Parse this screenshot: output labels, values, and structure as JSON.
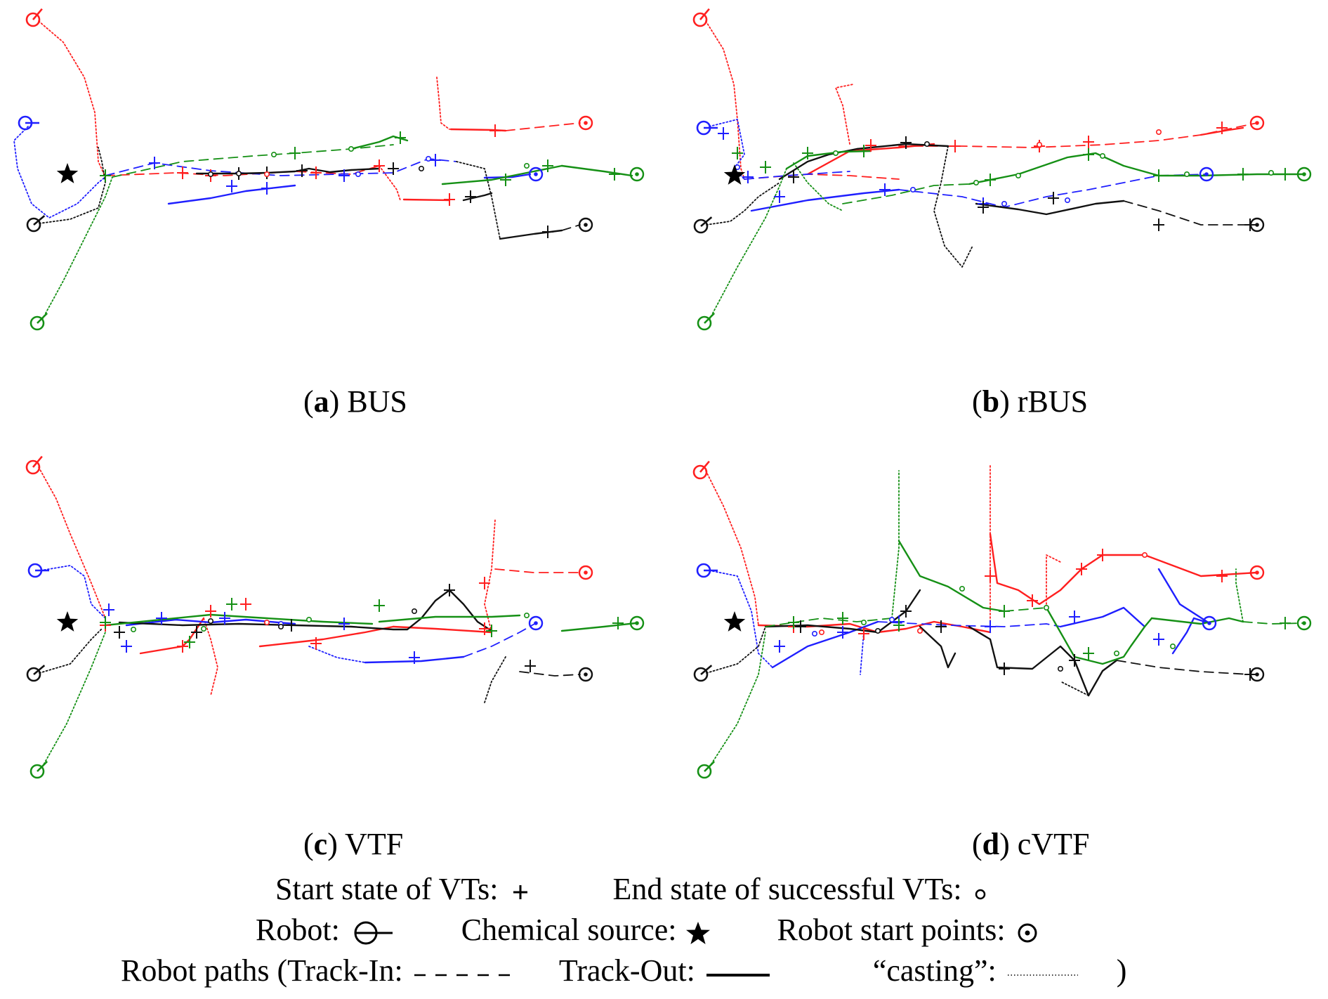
{
  "colors": {
    "red": "#ff1f1f",
    "blue": "#1f1fff",
    "black": "#111111",
    "green": "#159015"
  },
  "panels": [
    {
      "id": "a",
      "label": "a",
      "name": "BUS"
    },
    {
      "id": "b",
      "label": "b",
      "name": "rBUS"
    },
    {
      "id": "c",
      "label": "c",
      "name": "VTF"
    },
    {
      "id": "d",
      "label": "d",
      "name": "cVTF"
    }
  ],
  "legend": {
    "start_state": "Start state of VTs:",
    "end_state": "End state of successful VTs:",
    "robot": "Robot:",
    "chemical_source": "Chemical source:",
    "robot_start_points": "Robot start points:",
    "robot_paths_prefix": "Robot paths (Track-In:",
    "track_out": "Track-Out:",
    "casting": "“casting”:",
    "close_paren": ")"
  }
}
